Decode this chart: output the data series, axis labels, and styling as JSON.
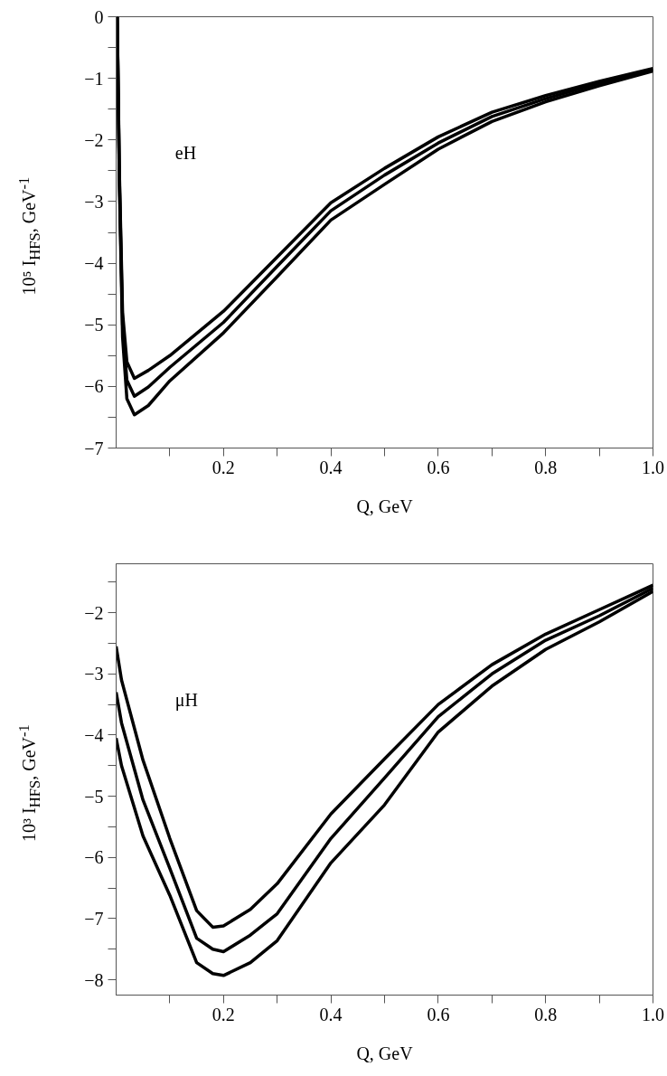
{
  "chart_data": [
    {
      "type": "line",
      "xlabel": "Q, GeV",
      "ylabel": "10⁵ I$_{HFS}$, GeV$^{-1}$",
      "annotations": [
        "eH"
      ],
      "grid": false,
      "marker": "none",
      "line_style": "solid",
      "xlim": [
        0,
        1.0
      ],
      "ylim": [
        -7,
        0
      ],
      "xticks": [
        {
          "value": 0.1,
          "label": null
        },
        0.2,
        {
          "value": 0.3,
          "label": null
        },
        0.4,
        {
          "value": 0.5,
          "label": null
        },
        0.6,
        {
          "value": 0.7,
          "label": null
        },
        0.8,
        {
          "value": 0.9,
          "label": null
        },
        {
          "value": 1.0,
          "label": "1.0"
        }
      ],
      "yticks": [
        {
          "value": -7,
          "label": "−7"
        },
        {
          "value": -6.5,
          "label": null
        },
        {
          "value": -6,
          "label": "−6"
        },
        {
          "value": -5.5,
          "label": null
        },
        {
          "value": -5,
          "label": "−5"
        },
        {
          "value": -4.5,
          "label": null
        },
        {
          "value": -4,
          "label": "−4"
        },
        {
          "value": -3.5,
          "label": null
        },
        {
          "value": -3,
          "label": "−3"
        },
        {
          "value": -2.5,
          "label": null
        },
        {
          "value": -2,
          "label": "−2"
        },
        {
          "value": -1.5,
          "label": null
        },
        {
          "value": -1,
          "label": "−1"
        },
        {
          "value": -0.5,
          "label": null
        },
        0
      ],
      "x": [
        0.002,
        0.006,
        0.012,
        0.02,
        0.034,
        0.06,
        0.1,
        0.2,
        0.3,
        0.4,
        0.5,
        0.6,
        0.7,
        0.8,
        0.9,
        1.0
      ],
      "series": [
        {
          "color": "#000000",
          "values": [
            0,
            -2.5,
            -4.8,
            -5.6,
            -5.87,
            -5.74,
            -5.5,
            -4.78,
            -3.9,
            -3.02,
            -2.46,
            -1.95,
            -1.55,
            -1.28,
            -1.05,
            -0.84
          ]
        },
        {
          "color": "#000000",
          "values": [
            0,
            -2.6,
            -5.0,
            -5.9,
            -6.16,
            -6.01,
            -5.69,
            -4.96,
            -4.05,
            -3.15,
            -2.57,
            -2.05,
            -1.62,
            -1.33,
            -1.08,
            -0.86
          ]
        },
        {
          "color": "#000000",
          "values": [
            0,
            -2.7,
            -5.2,
            -6.2,
            -6.46,
            -6.31,
            -5.91,
            -5.13,
            -4.22,
            -3.3,
            -2.72,
            -2.15,
            -1.7,
            -1.38,
            -1.12,
            -0.88
          ]
        }
      ]
    },
    {
      "type": "line",
      "xlabel": "Q, GeV",
      "ylabel": "10³ I$_{HFS}$, GeV$^{-1}$",
      "annotations": [
        "μH"
      ],
      "grid": false,
      "marker": "none",
      "line_style": "solid",
      "xlim": [
        0,
        1.0
      ],
      "ylim": [
        -8.25,
        -1.2
      ],
      "xticks": [
        {
          "value": 0.1,
          "label": null
        },
        0.2,
        {
          "value": 0.3,
          "label": null
        },
        0.4,
        {
          "value": 0.5,
          "label": null
        },
        0.6,
        {
          "value": 0.7,
          "label": null
        },
        0.8,
        {
          "value": 0.9,
          "label": null
        },
        {
          "value": 1.0,
          "label": "1.0"
        }
      ],
      "yticks": [
        {
          "value": -8,
          "label": "−8"
        },
        {
          "value": -7.5,
          "label": null
        },
        {
          "value": -7,
          "label": "−7"
        },
        {
          "value": -6.5,
          "label": null
        },
        {
          "value": -6,
          "label": "−6"
        },
        {
          "value": -5.5,
          "label": null
        },
        {
          "value": -5,
          "label": "−5"
        },
        {
          "value": -4.5,
          "label": null
        },
        {
          "value": -4,
          "label": "−4"
        },
        {
          "value": -3.5,
          "label": null
        },
        {
          "value": -3,
          "label": "−3"
        },
        {
          "value": -2.5,
          "label": null
        },
        {
          "value": -2,
          "label": "−2"
        },
        {
          "value": -1.5,
          "label": null
        }
      ],
      "x": [
        0.0,
        0.01,
        0.05,
        0.1,
        0.15,
        0.18,
        0.2,
        0.25,
        0.3,
        0.4,
        0.5,
        0.6,
        0.7,
        0.8,
        0.9,
        1.0
      ],
      "series": [
        {
          "color": "#000000",
          "values": [
            -2.55,
            -3.1,
            -4.41,
            -5.69,
            -6.87,
            -7.14,
            -7.12,
            -6.85,
            -6.43,
            -5.29,
            -4.39,
            -3.5,
            -2.85,
            -2.35,
            -1.95,
            -1.55
          ]
        },
        {
          "color": "#000000",
          "values": [
            -3.3,
            -3.8,
            -5.06,
            -6.18,
            -7.32,
            -7.5,
            -7.54,
            -7.27,
            -6.92,
            -5.69,
            -4.7,
            -3.7,
            -3.0,
            -2.45,
            -2.05,
            -1.6
          ]
        },
        {
          "color": "#000000",
          "values": [
            -4.05,
            -4.5,
            -5.65,
            -6.62,
            -7.72,
            -7.9,
            -7.93,
            -7.72,
            -7.36,
            -6.09,
            -5.14,
            -3.95,
            -3.2,
            -2.6,
            -2.15,
            -1.65
          ]
        }
      ]
    }
  ]
}
